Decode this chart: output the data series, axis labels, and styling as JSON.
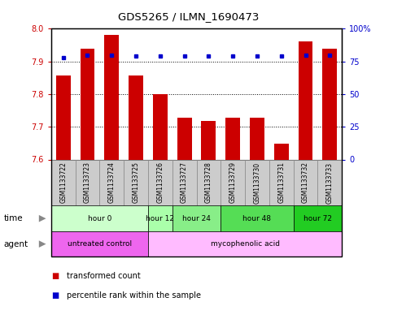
{
  "title": "GDS5265 / ILMN_1690473",
  "samples": [
    "GSM1133722",
    "GSM1133723",
    "GSM1133724",
    "GSM1133725",
    "GSM1133726",
    "GSM1133727",
    "GSM1133728",
    "GSM1133729",
    "GSM1133730",
    "GSM1133731",
    "GSM1133732",
    "GSM1133733"
  ],
  "bar_values": [
    7.857,
    7.94,
    7.98,
    7.857,
    7.8,
    7.727,
    7.718,
    7.727,
    7.727,
    7.648,
    7.962,
    7.938
  ],
  "percentile_values": [
    78,
    80,
    80,
    79,
    79,
    79,
    79,
    79,
    79,
    79,
    80,
    80
  ],
  "bar_color": "#cc0000",
  "percentile_color": "#0000cc",
  "ymin": 7.6,
  "ymax": 8.0,
  "yticks": [
    7.6,
    7.7,
    7.8,
    7.9,
    8.0
  ],
  "y2min": 0,
  "y2max": 100,
  "y2ticks": [
    0,
    25,
    50,
    75,
    100
  ],
  "y2ticklabels": [
    "0",
    "25",
    "50",
    "75",
    "100%"
  ],
  "gridlines": [
    7.7,
    7.8,
    7.9
  ],
  "time_groups": [
    {
      "label": "hour 0",
      "start": 0,
      "end": 3,
      "color": "#ccffcc"
    },
    {
      "label": "hour 12",
      "start": 4,
      "end": 4,
      "color": "#aaffaa"
    },
    {
      "label": "hour 24",
      "start": 5,
      "end": 6,
      "color": "#88ee88"
    },
    {
      "label": "hour 48",
      "start": 7,
      "end": 9,
      "color": "#55dd55"
    },
    {
      "label": "hour 72",
      "start": 10,
      "end": 11,
      "color": "#22cc22"
    }
  ],
  "agent_groups": [
    {
      "label": "untreated control",
      "start": 0,
      "end": 3,
      "color": "#ee66ee"
    },
    {
      "label": "mycophenolic acid",
      "start": 4,
      "end": 11,
      "color": "#ffbbff"
    }
  ],
  "sample_bg_color": "#cccccc",
  "sample_border_color": "#888888",
  "legend_bar_label": "transformed count",
  "legend_pct_label": "percentile rank within the sample"
}
